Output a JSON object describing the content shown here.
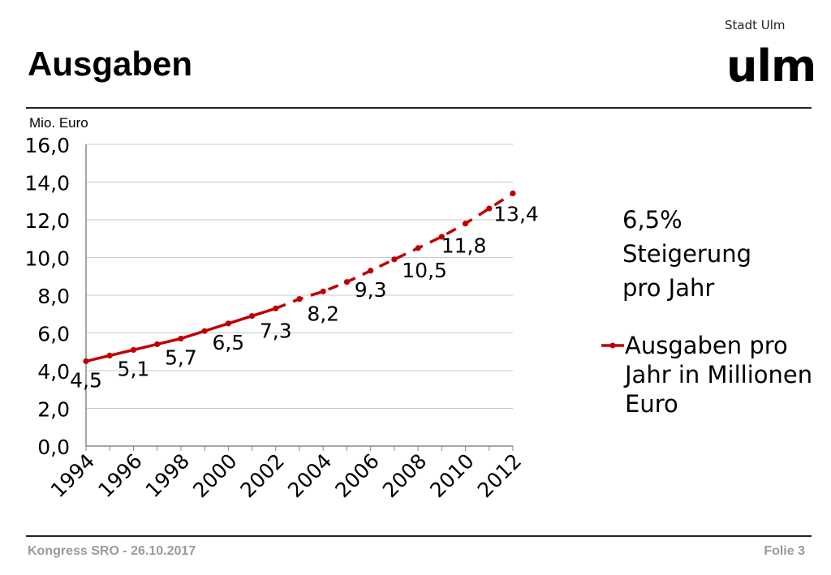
{
  "header": {
    "title": "Ausgaben",
    "brand_small": "Stadt Ulm",
    "brand_big": "ulm"
  },
  "footer": {
    "left": "Kongress SRO - 26.10.2017",
    "right": "Folie 3"
  },
  "annotation": [
    "6,5%",
    "Steigerung",
    "pro Jahr"
  ],
  "legend": {
    "label": "Ausgaben pro Jahr in Millionen Euro"
  },
  "colors": {
    "series": "#c00000",
    "grid": "#c8c8c8",
    "axis": "#888888"
  },
  "chart_data": {
    "type": "line",
    "ylabel": "Mio. Euro",
    "ylim": [
      0,
      16
    ],
    "y_ticks": [
      "0,0",
      "2,0",
      "4,0",
      "6,0",
      "8,0",
      "10,0",
      "12,0",
      "14,0",
      "16,0"
    ],
    "x_tick_labels": [
      "1994",
      "1996",
      "1998",
      "2000",
      "2002",
      "2004",
      "2006",
      "2008",
      "2010",
      "2012"
    ],
    "x": [
      1994,
      1995,
      1996,
      1997,
      1998,
      1999,
      2000,
      2001,
      2002,
      2003,
      2004,
      2005,
      2006,
      2007,
      2008,
      2009,
      2010,
      2011,
      2012
    ],
    "grid": "horizontal",
    "legend_position": "right",
    "series": [
      {
        "name": "Ausgaben pro Jahr in Millionen Euro",
        "values": [
          4.5,
          4.8,
          5.1,
          5.4,
          5.7,
          6.1,
          6.5,
          6.9,
          7.3,
          7.8,
          8.2,
          8.7,
          9.3,
          9.9,
          10.5,
          11.1,
          11.8,
          12.6,
          13.4
        ],
        "solid_until": 2002
      }
    ],
    "data_labels": [
      {
        "x": 1994,
        "text": "4,5"
      },
      {
        "x": 1996,
        "text": "5,1"
      },
      {
        "x": 1998,
        "text": "5,7"
      },
      {
        "x": 2000,
        "text": "6,5"
      },
      {
        "x": 2002,
        "text": "7,3"
      },
      {
        "x": 2004,
        "text": "8,2"
      },
      {
        "x": 2006,
        "text": "9,3"
      },
      {
        "x": 2008,
        "text": "10,5"
      },
      {
        "x": 2010,
        "text": "11,8"
      },
      {
        "x": 2012,
        "text": "13,4"
      }
    ]
  }
}
